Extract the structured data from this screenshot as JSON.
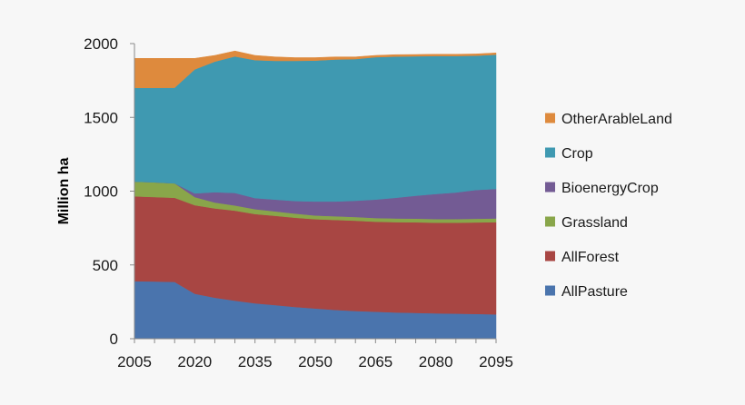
{
  "chart_data": {
    "type": "area",
    "stacked": true,
    "title": "",
    "xlabel": "",
    "ylabel": "Million ha",
    "x": [
      2005,
      2010,
      2015,
      2020,
      2025,
      2030,
      2035,
      2040,
      2045,
      2050,
      2055,
      2060,
      2065,
      2070,
      2075,
      2080,
      2085,
      2090,
      2095
    ],
    "xlim": [
      2005,
      2095
    ],
    "ylim": [
      0,
      2000
    ],
    "x_ticks": [
      "2005",
      "2020",
      "2035",
      "2050",
      "2065",
      "2080",
      "2095"
    ],
    "y_ticks": [
      "0",
      "500",
      "1000",
      "1500",
      "2000"
    ],
    "grid": false,
    "legend_position": "right",
    "legend_order": [
      "OtherArableLand",
      "Crop",
      "BioenergyCrop",
      "Grassland",
      "AllForest",
      "AllPasture"
    ],
    "series": [
      {
        "name": "AllPasture",
        "color": "#4a74ad",
        "values": [
          390,
          388,
          385,
          305,
          278,
          258,
          240,
          228,
          215,
          205,
          195,
          188,
          183,
          178,
          175,
          172,
          170,
          168,
          165
        ]
      },
      {
        "name": "AllForest",
        "color": "#a84643",
        "values": [
          575,
          572,
          570,
          600,
          605,
          610,
          605,
          605,
          605,
          605,
          610,
          612,
          610,
          612,
          614,
          614,
          616,
          620,
          625
        ]
      },
      {
        "name": "Grassland",
        "color": "#89a64a",
        "values": [
          100,
          100,
          98,
          55,
          40,
          35,
          33,
          30,
          28,
          25,
          25,
          25,
          25,
          25,
          25,
          25,
          25,
          25,
          25
        ]
      },
      {
        "name": "BioenergyCrop",
        "color": "#735b94",
        "values": [
          0,
          0,
          0,
          25,
          70,
          85,
          75,
          80,
          85,
          95,
          100,
          110,
          125,
          140,
          155,
          170,
          180,
          195,
          200
        ]
      },
      {
        "name": "Crop",
        "color": "#3f99b1",
        "values": [
          635,
          640,
          648,
          840,
          885,
          925,
          935,
          940,
          950,
          955,
          962,
          960,
          965,
          957,
          945,
          935,
          925,
          910,
          910
        ]
      },
      {
        "name": "OtherArableLand",
        "color": "#de8a3d",
        "values": [
          200,
          200,
          199,
          75,
          42,
          37,
          32,
          27,
          22,
          20,
          18,
          15,
          12,
          13,
          12,
          12,
          12,
          12,
          12
        ]
      }
    ]
  }
}
